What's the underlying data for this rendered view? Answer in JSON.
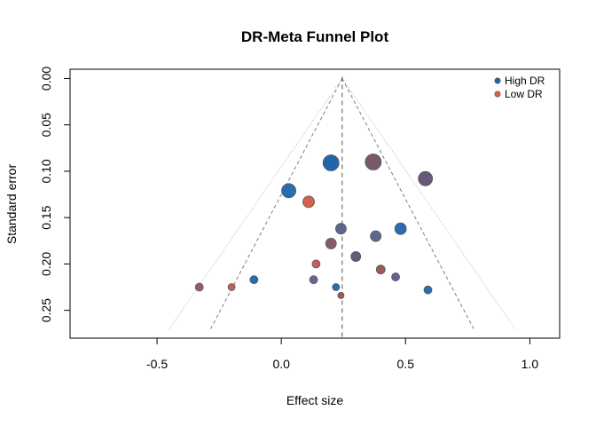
{
  "chart_data": {
    "type": "scatter",
    "title": "DR-Meta Funnel Plot",
    "xlabel": "Effect size",
    "ylabel": "Standard error",
    "xlim": [
      -0.85,
      1.12
    ],
    "ylim": [
      0.28,
      -0.01
    ],
    "y_reversed": true,
    "x_ticks": [
      -0.5,
      0.0,
      0.5,
      1.0
    ],
    "x_tick_labels": [
      "-0.5",
      "0.0",
      "0.5",
      "1.0"
    ],
    "y_ticks": [
      0.0,
      0.05,
      0.1,
      0.15,
      0.2,
      0.25
    ],
    "y_tick_labels": [
      "0.00",
      "0.05",
      "0.10",
      "0.15",
      "0.20",
      "0.25"
    ],
    "grid": false,
    "legend_position": "top-right",
    "summary_effect": 0.245,
    "funnel_lines": [
      {
        "style": "dashed",
        "color": "#7f7f7f",
        "z": 1.96,
        "se_max": 0.27
      },
      {
        "style": "dotted",
        "color": "#b0b0b0",
        "z": 2.576,
        "se_max": 0.27
      }
    ],
    "legend": [
      {
        "label": "High DR",
        "color": "#2166ac"
      },
      {
        "label": "Low DR",
        "color": "#d6604d"
      }
    ],
    "points": [
      {
        "x": 0.2,
        "y": 0.091,
        "size": 9,
        "color": "#2166ac"
      },
      {
        "x": 0.37,
        "y": 0.09,
        "size": 9,
        "color": "#7a5a6a"
      },
      {
        "x": 0.58,
        "y": 0.108,
        "size": 8,
        "color": "#6a5878"
      },
      {
        "x": 0.03,
        "y": 0.121,
        "size": 8,
        "color": "#2a6cb0"
      },
      {
        "x": 0.11,
        "y": 0.133,
        "size": 6.5,
        "color": "#d6604d"
      },
      {
        "x": 0.24,
        "y": 0.162,
        "size": 6,
        "color": "#5a6790"
      },
      {
        "x": 0.48,
        "y": 0.162,
        "size": 6.5,
        "color": "#2a6cb0"
      },
      {
        "x": 0.38,
        "y": 0.17,
        "size": 6,
        "color": "#5e6690"
      },
      {
        "x": 0.2,
        "y": 0.178,
        "size": 6,
        "color": "#8a5a6a"
      },
      {
        "x": 0.3,
        "y": 0.192,
        "size": 5.5,
        "color": "#6a5a78"
      },
      {
        "x": 0.14,
        "y": 0.2,
        "size": 4.5,
        "color": "#c0605a"
      },
      {
        "x": 0.4,
        "y": 0.206,
        "size": 5,
        "color": "#9a5a60"
      },
      {
        "x": 0.46,
        "y": 0.214,
        "size": 4.5,
        "color": "#6a6090"
      },
      {
        "x": 0.13,
        "y": 0.217,
        "size": 4.5,
        "color": "#6a6590"
      },
      {
        "x": -0.11,
        "y": 0.217,
        "size": 4.5,
        "color": "#2a6cb0"
      },
      {
        "x": 0.22,
        "y": 0.225,
        "size": 4,
        "color": "#2a6cb0"
      },
      {
        "x": 0.59,
        "y": 0.228,
        "size": 4.5,
        "color": "#2a6cb0"
      },
      {
        "x": -0.33,
        "y": 0.225,
        "size": 4.5,
        "color": "#9a5a60"
      },
      {
        "x": -0.2,
        "y": 0.225,
        "size": 4,
        "color": "#c0605a"
      },
      {
        "x": 0.24,
        "y": 0.234,
        "size": 3.5,
        "color": "#9a5a60"
      }
    ]
  }
}
